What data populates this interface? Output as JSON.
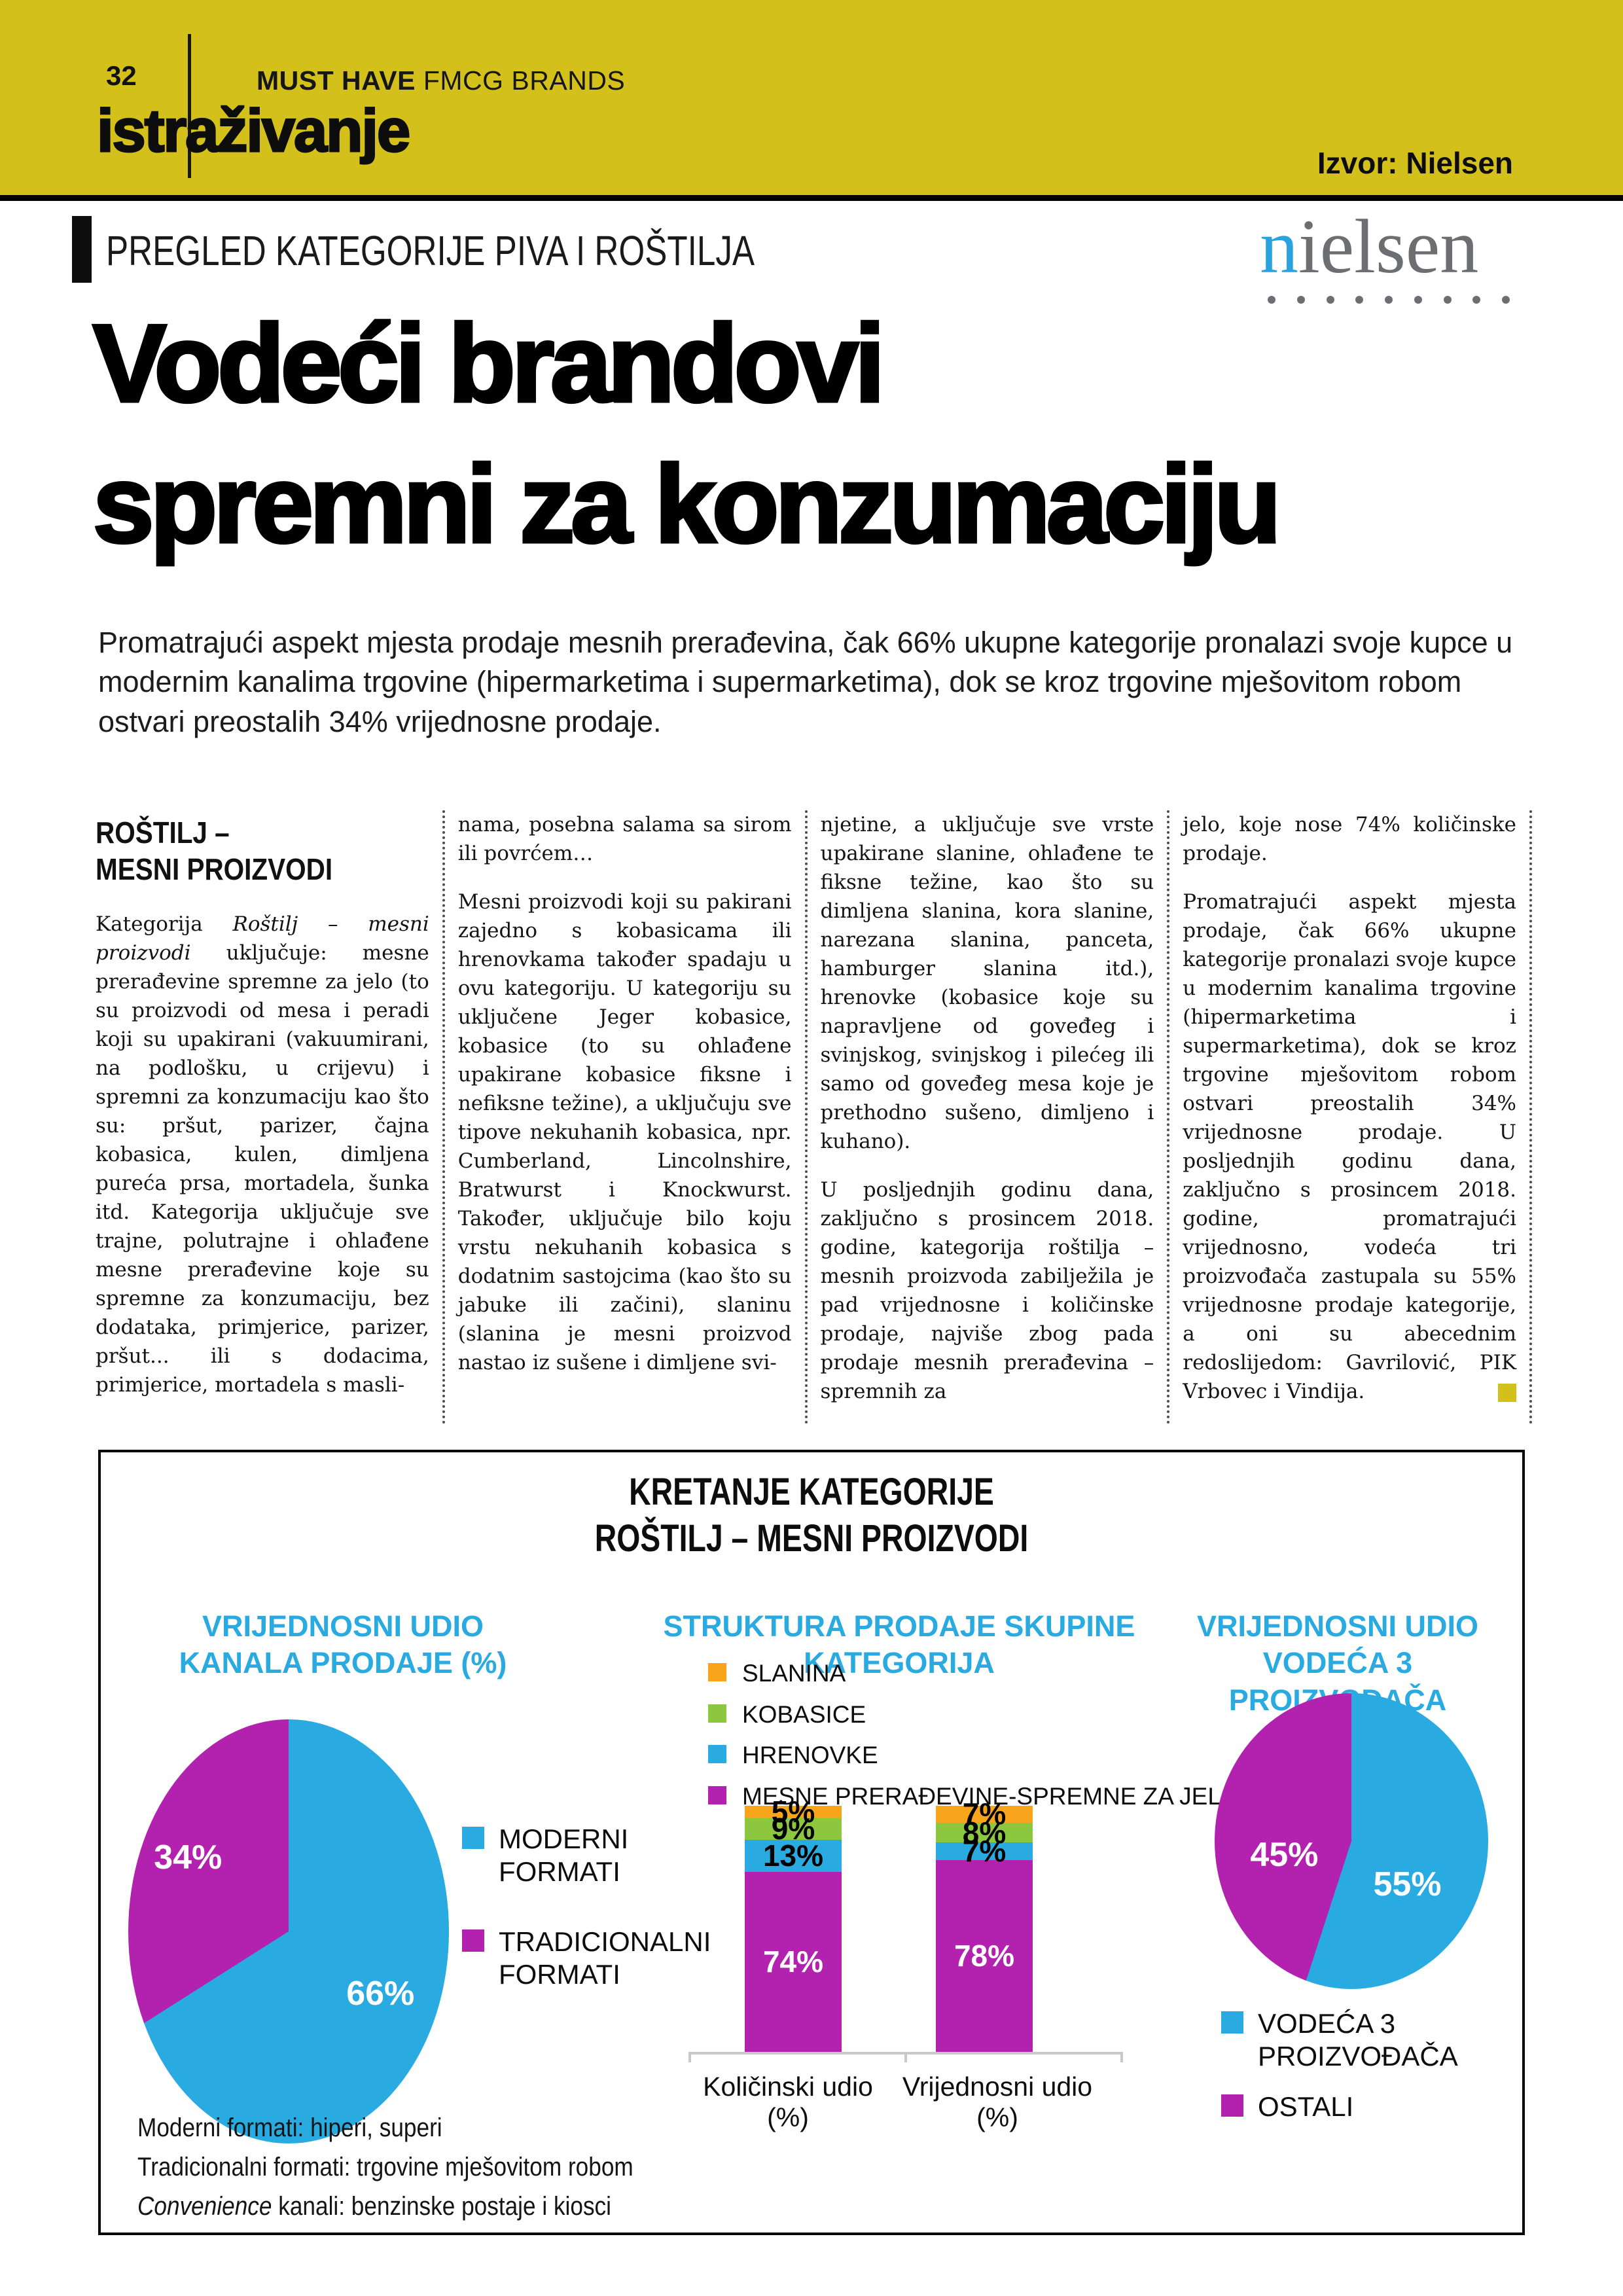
{
  "masthead": {
    "page_number": "32",
    "brand_bold": "MUST HAVE",
    "brand_light": " FMCG BRANDS",
    "section_title": "istraživanje",
    "source_label": "Izvor: Nielsen"
  },
  "kicker": "PREGLED KATEGORIJE PIVA I ROŠTILJA",
  "logo": {
    "first_letter": "n",
    "rest": "ielsen",
    "dots": 9
  },
  "headline": {
    "line1": "Vodeći brandovi",
    "line2": "spremni za konzumaciju"
  },
  "lead": "Promatrajući aspekt mjesta prodaje mesnih prerađevina, čak 66% ukupne kategorije pronalazi svoje kupce u modernim kanalima trgovine (hipermarketima i supermarketima), dok se kroz trgovine mješovitom robom ostvari preostalih 34% vrijednosne prodaje.",
  "article": {
    "heading_line1": "ROŠTILJ –",
    "heading_line2": "MESNI PROIZVODI",
    "col1": {
      "before_italic": "Kategorija ",
      "italic": "Roštilj – mesni proizvodi",
      "after_italic": " uključuje: mesne prerađevine spremne za jelo (to su proizvodi od mesa i peradi koji su upakirani (vakuumirani, na podlošku, u crijevu) i spremni za konzumaciju kao što su: pršut, parizer, čajna kobasica, kulen, dimljena pureća prsa, mortadela, šunka itd. Kategorija uključuje sve trajne, polutrajne i ohlađene mesne prerađevine koje su spremne za konzumaciju, bez dodataka, primjerice, parizer, pršut... ili s dodacima, primjerice, mortadela s masli-"
    },
    "col2": [
      "nama, posebna salama sa sirom ili povrćem…",
      "Mesni proizvodi koji su pakirani zajedno s kobasicama ili hrenovkama također spadaju u ovu kategoriju. U kategoriju su uključene Jeger kobasice, kobasice (to su ohlađene upakirane kobasice fiksne i nefiksne težine), a uključuju sve tipove nekuhanih kobasica, npr. Cumberland, Lincolnshire, Bratwurst i Knockwurst. Također, uključuje bilo koju vrstu nekuhanih kobasica s dodatnim sastojcima (kao što su jabuke ili začini), slaninu (slanina je mesni proizvod nastao iz sušene i dimljene svi-"
    ],
    "col3": [
      "njetine, a uključuje sve vrste upakirane slanine, ohlađene te fiksne težine, kao što su dimljena slanina, kora slanine, narezana slanina, panceta, hamburger slanina itd.), hrenovke (kobasice koje su napravljene od goveđeg i svinjskog, svinjskog i pilećeg ili samo od goveđeg mesa koje je prethodno sušeno, dimljeno i kuhano).",
      "U posljednjih godinu dana, zaključno s prosincem 2018. godine, kategorija roštilja – mesnih proizvoda zabilježila je pad vrijednosne i količinske prodaje, najviše zbog pada prodaje mesnih prerađevina – spremnih za"
    ],
    "col4": [
      "jelo, koje nose 74% količinske prodaje.",
      "Promatrajući aspekt mjesta prodaje, čak 66% ukupne kategorije pronalazi svoje kupce u modernim kanalima trgovine (hipermarketima i supermarketima), dok se kroz trgovine mješovitom robom ostvari preostalih 34% vrijednosne prodaje. U posljednjih godinu dana, zaključno s prosincem 2018. godine, promatrajući vrijednosno, vodeća tri proizvođača zastupala su 55% vrijednosne prodaje kategorije, a oni su abecednim redoslijedom: Gavrilović, PIK Vrbovec i Vindija."
    ]
  },
  "chart_box": {
    "title_line1": "KRETANJE KATEGORIJE",
    "title_line2": "ROŠTILJ – MESNI PROIZVODI",
    "footnote_line1": "Moderni formati: hiperi, superi",
    "footnote_line2": "Tradicionalni formati: trgovine mješovitom robom",
    "footnote_line3_italic": "Convenience",
    "footnote_line3_rest": " kanali: benzinske postaje i kiosci"
  },
  "chart_data": [
    {
      "type": "pie",
      "title": "VRIJEDNOSNI UDIO KANALA PRODAJE (%)",
      "title_lines": [
        "VRIJEDNOSNI UDIO",
        "KANALA PRODAJE (%)"
      ],
      "labels": [
        "MODERNI FORMATI",
        "TRADICIONALNI FORMATI"
      ],
      "values": [
        66,
        34
      ],
      "colors": [
        "#29abe2",
        "#b322ae"
      ],
      "legend_position": "right"
    },
    {
      "type": "bar",
      "stacked": true,
      "title": "STRUKTURA PRODAJE SKUPINE KATEGORIJA",
      "title_lines": [
        "STRUKTURA PRODAJE SKUPINE",
        "KATEGORIJA"
      ],
      "categories": [
        "Količinski udio (%)",
        "Vrijednosni udio (%)"
      ],
      "series": [
        {
          "name": "SLANINA",
          "color": "#f9a51c",
          "values": [
            5,
            7
          ]
        },
        {
          "name": "KOBASICE",
          "color": "#8dc63f",
          "values": [
            9,
            8
          ]
        },
        {
          "name": "HRENOVKE",
          "color": "#29abe2",
          "values": [
            13,
            7
          ]
        },
        {
          "name": "MESNE PRERAĐEVINE-SPREMNE ZA JELO",
          "color": "#b322ae",
          "values": [
            74,
            78
          ],
          "label_color": "#ffffff"
        }
      ],
      "ylim": [
        0,
        100
      ],
      "grid": false,
      "legend_position": "top"
    },
    {
      "type": "pie",
      "title": "VRIJEDNOSNI UDIO VODEĆA 3 PROIZVOĐAČA",
      "title_lines": [
        "VRIJEDNOSNI UDIO",
        "VODEĆA 3 PROIZVOĐAČA"
      ],
      "labels": [
        "VODEĆA 3 PROIZVOĐAČA",
        "OSTALI"
      ],
      "values": [
        55,
        45
      ],
      "colors": [
        "#29abe2",
        "#b322ae"
      ],
      "legend_position": "bottom"
    }
  ],
  "colors": {
    "masthead_yellow": "#d3c01b",
    "accent_blue": "#29abe2",
    "accent_magenta": "#b322ae",
    "accent_orange": "#f9a51c",
    "accent_green": "#8dc63f",
    "nielsen_gray": "#6d6e71",
    "nielsen_blue": "#29a3dd"
  }
}
